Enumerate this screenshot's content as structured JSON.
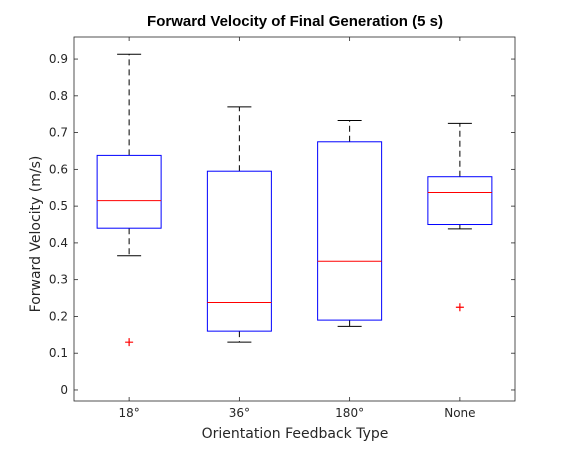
{
  "chart_data": {
    "type": "box",
    "title": "Forward Velocity of Final Generation (5 s)",
    "xlabel": "Orientation Feedback Type",
    "ylabel": "Forward Velocity (m/s)",
    "ylim": [
      -0.03,
      0.96
    ],
    "yticks": [
      0,
      0.1,
      0.2,
      0.3,
      0.4,
      0.5,
      0.6,
      0.7,
      0.8,
      0.9
    ],
    "ytick_labels": [
      "0",
      "0.1",
      "0.2",
      "0.3",
      "0.4",
      "0.5",
      "0.6",
      "0.7",
      "0.8",
      "0.9"
    ],
    "grid": false,
    "box_color": "#0000ff",
    "median_color": "#ff0000",
    "outlier_color": "#ff0000",
    "whisker_color": "#000000",
    "categories": [
      {
        "label": "18°",
        "whisker_low": 0.365,
        "q1": 0.44,
        "median": 0.515,
        "q3": 0.638,
        "whisker_high": 0.913,
        "outliers": [
          0.13
        ]
      },
      {
        "label": "36°",
        "whisker_low": 0.13,
        "q1": 0.16,
        "median": 0.238,
        "q3": 0.595,
        "whisker_high": 0.77,
        "outliers": []
      },
      {
        "label": "180°",
        "whisker_low": 0.173,
        "q1": 0.19,
        "median": 0.35,
        "q3": 0.675,
        "whisker_high": 0.733,
        "outliers": []
      },
      {
        "label": "None",
        "whisker_low": 0.438,
        "q1": 0.45,
        "median": 0.537,
        "q3": 0.58,
        "whisker_high": 0.725,
        "outliers": [
          0.225
        ]
      }
    ]
  }
}
